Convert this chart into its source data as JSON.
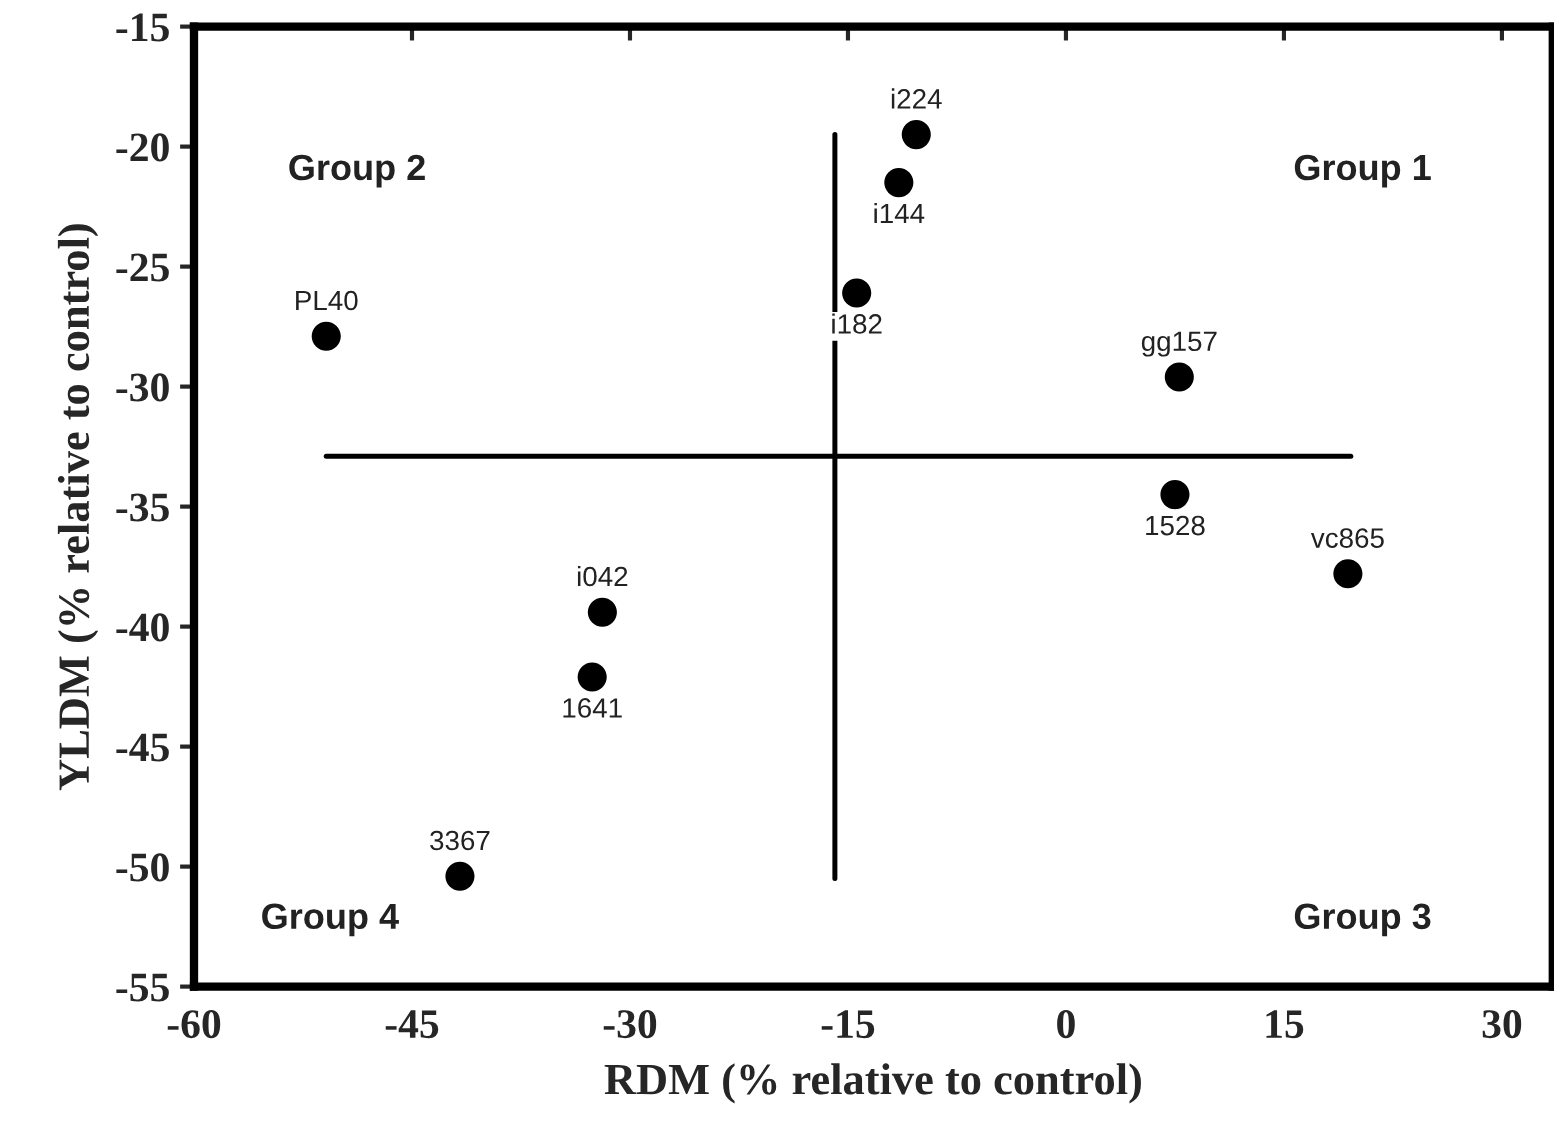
{
  "chart_data": {
    "type": "scatter",
    "xlabel": "RDM (% relative to control)",
    "ylabel": "YLDM (% relative to control)",
    "xlim": [
      -60,
      33.5
    ],
    "xticks": [
      -60,
      -45,
      -30,
      -15,
      0,
      15,
      30
    ],
    "ylim": [
      -55,
      -15
    ],
    "yticks": [
      -55,
      -50,
      -45,
      -40,
      -35,
      -30,
      -25,
      -20,
      -15
    ],
    "grid": false,
    "legend": false,
    "series": [
      {
        "color": "#000000",
        "marker": "circle",
        "x": [
          -50.9,
          -10.3,
          -11.5,
          -14.4,
          7.8,
          7.5,
          19.4,
          -31.9,
          -32.6,
          -41.7
        ],
        "values": [
          -27.9,
          -19.5,
          -21.5,
          -26.1,
          -29.6,
          -34.5,
          -37.8,
          -39.4,
          -42.1,
          -50.4
        ]
      },
      {
        "type": "line",
        "marker": "none",
        "color": "#000000",
        "x": [
          -50.9,
          19.6
        ],
        "values": [
          -32.9,
          -32.9
        ]
      },
      {
        "type": "line",
        "marker": "none",
        "color": "#000000",
        "x": [
          -15.9,
          -15.9
        ],
        "values": [
          -19.5,
          -50.5
        ]
      }
    ],
    "annotations": [
      "Group 1",
      "Group 2",
      "Group 3",
      "Group 4",
      {
        "text": "PL40",
        "x": -50.9,
        "y": -27.9
      },
      {
        "text": "i224",
        "x": -10.3,
        "y": -19.5
      },
      {
        "text": "i144",
        "x": -11.5,
        "y": -21.5
      },
      {
        "text": "i182",
        "x": -14.4,
        "y": -26.1
      },
      {
        "text": "gg157",
        "x": 7.8,
        "y": -29.6
      },
      {
        "text": "1528",
        "x": 7.5,
        "y": -34.5
      },
      {
        "text": "vc865",
        "x": 19.4,
        "y": -37.8
      },
      {
        "text": "i042",
        "x": -31.9,
        "y": -39.4
      },
      {
        "text": "1641",
        "x": -32.6,
        "y": -42.1
      },
      {
        "text": "3367",
        "x": -41.7,
        "y": -50.4
      }
    ]
  }
}
